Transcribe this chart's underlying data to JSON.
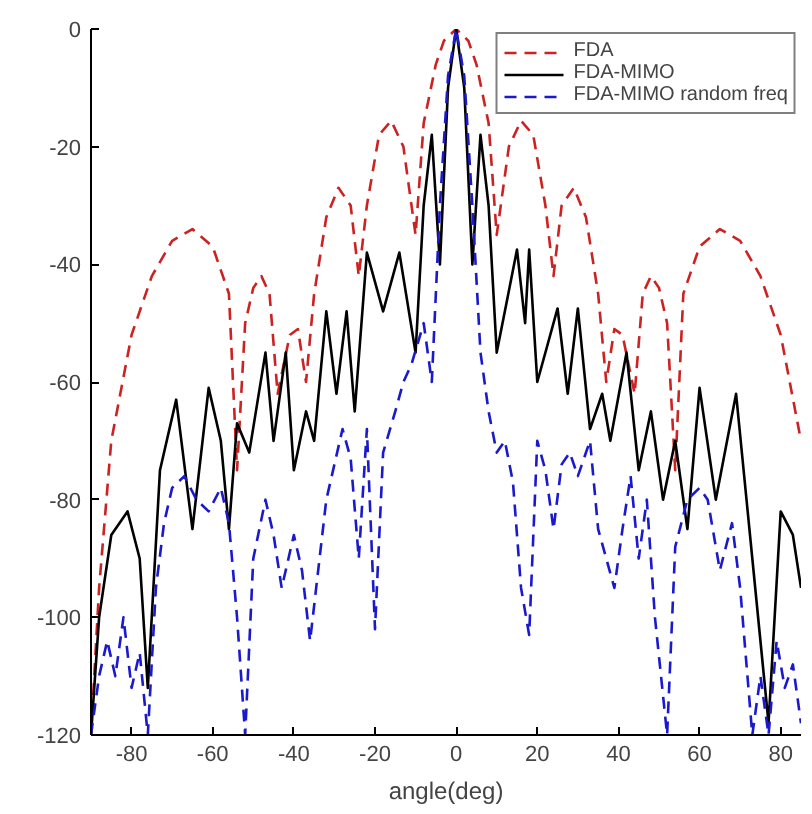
{
  "chart_data": {
    "type": "line",
    "xlabel": "angle(deg)",
    "xlim": [
      -90,
      85
    ],
    "ylim": [
      -120,
      0
    ],
    "xticks": [
      -80,
      -60,
      -40,
      -20,
      0,
      20,
      40,
      60,
      80
    ],
    "yticks": [
      -120,
      -100,
      -80,
      -60,
      -40,
      -20,
      0
    ],
    "grid": false,
    "legend": "top right",
    "marker": "none",
    "series": [
      {
        "name": "FDA",
        "color": "#cc2222",
        "line_style": "dashed",
        "x": [
          -90,
          -88,
          -85,
          -80,
          -75,
          -70,
          -65,
          -60,
          -56,
          -54,
          -52,
          -50,
          -48,
          -46,
          -44,
          -41,
          -39,
          -37,
          -35,
          -32,
          -29,
          -26,
          -24,
          -22,
          -19,
          -16,
          -13,
          -10,
          -8,
          -5,
          -3,
          0,
          3,
          5,
          8,
          10,
          13,
          16,
          19,
          22,
          24,
          26,
          29,
          32,
          35,
          37,
          39,
          41,
          44,
          46,
          48,
          50,
          52,
          54,
          56,
          60,
          65,
          70,
          75,
          80,
          85
        ],
        "values": [
          -120,
          -95,
          -70,
          -52,
          -42,
          -36,
          -34,
          -37,
          -45,
          -75,
          -50,
          -44,
          -42,
          -45,
          -62,
          -52,
          -51,
          -60,
          -45,
          -32,
          -27,
          -30,
          -42,
          -30,
          -18,
          -15.6,
          -20,
          -35,
          -16,
          -6,
          -2,
          0,
          -2,
          -6,
          -16,
          -35,
          -20,
          -15.6,
          -18,
          -30,
          -42,
          -30,
          -27,
          -32,
          -45,
          -60,
          -51,
          -52,
          -62,
          -45,
          -42,
          -44,
          -50,
          -75,
          -45,
          -37,
          -34,
          -36,
          -42,
          -52,
          -70
        ]
      },
      {
        "name": "FDA-MIMO",
        "color": "#000000",
        "line_style": "solid",
        "x": [
          -90,
          -88,
          -85,
          -81,
          -78,
          -76,
          -73,
          -69,
          -65,
          -61,
          -58,
          -56,
          -54,
          -51,
          -47,
          -45,
          -42,
          -40,
          -37,
          -35,
          -32,
          -29.5,
          -27,
          -25,
          -22,
          -18,
          -14,
          -10,
          -8,
          -6,
          -4,
          -2,
          0,
          2,
          4,
          6,
          8,
          10,
          15,
          17,
          18,
          20,
          25,
          27.5,
          30,
          33,
          36,
          38,
          42,
          45,
          48,
          51,
          54,
          57,
          60,
          64,
          69,
          73,
          77,
          80,
          83,
          85
        ],
        "values": [
          -120,
          -100,
          -86,
          -82,
          -90,
          -112,
          -75,
          -63,
          -85,
          -61,
          -70,
          -85,
          -67,
          -72,
          -55,
          -70,
          -55,
          -75,
          -65,
          -70,
          -48,
          -62,
          -48,
          -65,
          -38,
          -48,
          -38,
          -55,
          -30,
          -18,
          -40,
          -10,
          0,
          -10,
          -40,
          -18,
          -30,
          -55,
          -37.5,
          -50,
          -37.5,
          -60,
          -47.5,
          -62,
          -47.5,
          -68,
          -62,
          -70,
          -55,
          -75,
          -65,
          -80,
          -70,
          -85,
          -61,
          -80,
          -62,
          -90,
          -118,
          -82,
          -86,
          -95
        ]
      },
      {
        "name": "FDA-MIMO random freq",
        "color": "#1a1acc",
        "line_style": "dashed",
        "x": [
          -90,
          -88,
          -86,
          -84,
          -82,
          -80,
          -78,
          -76,
          -74,
          -72,
          -70,
          -67,
          -64,
          -61,
          -58,
          -56,
          -54,
          -52,
          -50,
          -47,
          -45,
          -43,
          -40,
          -38,
          -36,
          -34,
          -32,
          -28,
          -26,
          -24,
          -22,
          -20,
          -18,
          -15,
          -13,
          -11,
          -8,
          -6,
          -4,
          -2,
          0,
          2,
          4,
          6,
          8,
          10,
          12,
          14,
          16,
          18,
          20,
          22,
          24,
          26,
          28,
          30,
          33,
          35,
          37,
          39,
          41,
          43,
          45,
          47,
          49,
          52,
          54,
          57,
          60,
          62,
          65,
          68,
          70,
          73,
          75,
          77,
          79,
          81,
          83,
          85
        ],
        "values": [
          -120,
          -110,
          -104,
          -110,
          -100,
          -112,
          -106,
          -120,
          -95,
          -84,
          -78,
          -76,
          -80,
          -82,
          -78,
          -84,
          -100,
          -120,
          -90,
          -80,
          -86,
          -95,
          -86,
          -92,
          -104,
          -92,
          -80,
          -68,
          -73,
          -90,
          -68,
          -102,
          -72,
          -65,
          -60,
          -57,
          -50,
          -60,
          -30,
          -8,
          0,
          -8,
          -30,
          -55,
          -65,
          -72,
          -70,
          -77,
          -95,
          -103,
          -70,
          -75,
          -85,
          -74,
          -72,
          -76,
          -70,
          -85,
          -90,
          -95,
          -85,
          -76,
          -90,
          -80,
          -100,
          -120,
          -88,
          -80,
          -78,
          -80,
          -92,
          -84,
          -95,
          -120,
          -110,
          -120,
          -104,
          -112,
          -108,
          -118
        ]
      }
    ]
  }
}
